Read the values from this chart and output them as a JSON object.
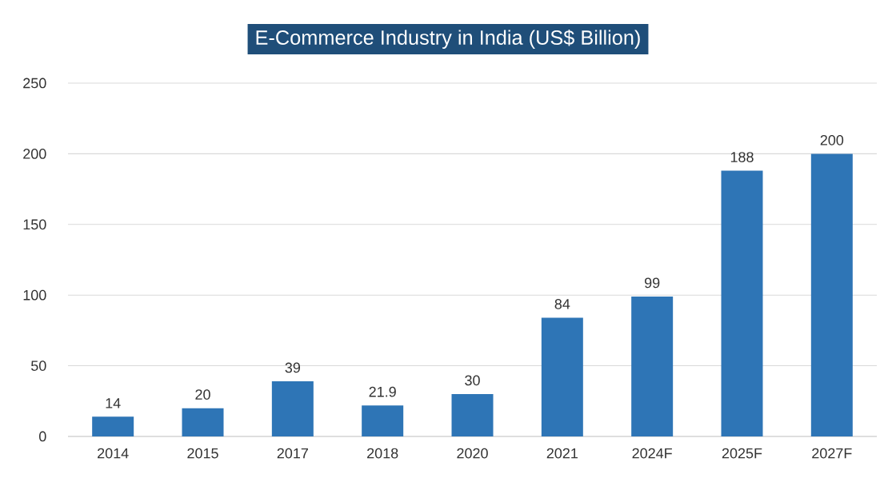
{
  "chart_data": {
    "type": "bar",
    "title": "E-Commerce Industry in India (US$ Billion)",
    "categories": [
      "2014",
      "2015",
      "2017",
      "2018",
      "2020",
      "2021",
      "2024F",
      "2025F",
      "2027F"
    ],
    "values": [
      14,
      20,
      39,
      21.9,
      30,
      84,
      99,
      188,
      200
    ],
    "color": "#2e75b6",
    "ylim": [
      0,
      250
    ],
    "yticks": [
      0,
      50,
      100,
      150,
      200,
      250
    ],
    "grid": "y",
    "data_labels": true
  }
}
